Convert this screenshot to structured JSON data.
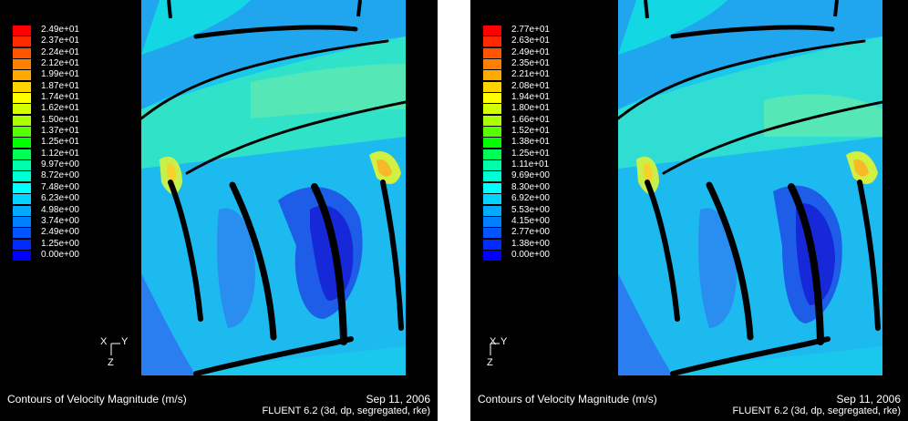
{
  "panels": [
    {
      "legend_values": [
        "2.49e+01",
        "2.37e+01",
        "2.24e+01",
        "2.12e+01",
        "1.99e+01",
        "1.87e+01",
        "1.74e+01",
        "1.62e+01",
        "1.50e+01",
        "1.37e+01",
        "1.25e+01",
        "1.12e+01",
        "9.97e+00",
        "8.72e+00",
        "7.48e+00",
        "6.23e+00",
        "4.98e+00",
        "3.74e+00",
        "2.49e+00",
        "1.25e+00",
        "0.00e+00"
      ],
      "axis_labels": {
        "x": "X",
        "y": "Y",
        "z": "Z"
      },
      "caption_title": "Contours of Velocity Magnitude (m/s)",
      "caption_date": "Sep 11, 2006",
      "caption_solver": "FLUENT 6.2 (3d, dp, segregated, rke)"
    },
    {
      "legend_values": [
        "2.77e+01",
        "2.63e+01",
        "2.49e+01",
        "2.35e+01",
        "2.21e+01",
        "2.08e+01",
        "1.94e+01",
        "1.80e+01",
        "1.66e+01",
        "1.52e+01",
        "1.38e+01",
        "1.25e+01",
        "1.11e+01",
        "9.69e+00",
        "8.30e+00",
        "6.92e+00",
        "5.53e+00",
        "4.15e+00",
        "2.77e+00",
        "1.38e+00",
        "0.00e+00"
      ],
      "axis_labels": {
        "x": "X",
        "y": "Y",
        "z": "Z"
      },
      "caption_title": "Contours of Velocity Magnitude (m/s)",
      "caption_date": "Sep 11, 2006",
      "caption_solver": "FLUENT 6.2 (3d, dp, segregated, rke)"
    }
  ],
  "colormap": [
    "#ff0000",
    "#ff2a00",
    "#ff5500",
    "#ff7f00",
    "#ffaa00",
    "#ffd400",
    "#ffff00",
    "#d4ff00",
    "#aaff00",
    "#55ff00",
    "#00ff00",
    "#00ff55",
    "#00ffaa",
    "#00ffd4",
    "#00ffff",
    "#00d4ff",
    "#00aaff",
    "#007fff",
    "#0055ff",
    "#002aff",
    "#0000ff"
  ],
  "colors": {
    "background": "#000000",
    "blade": "#000000",
    "field_base": "#19c8ec"
  }
}
